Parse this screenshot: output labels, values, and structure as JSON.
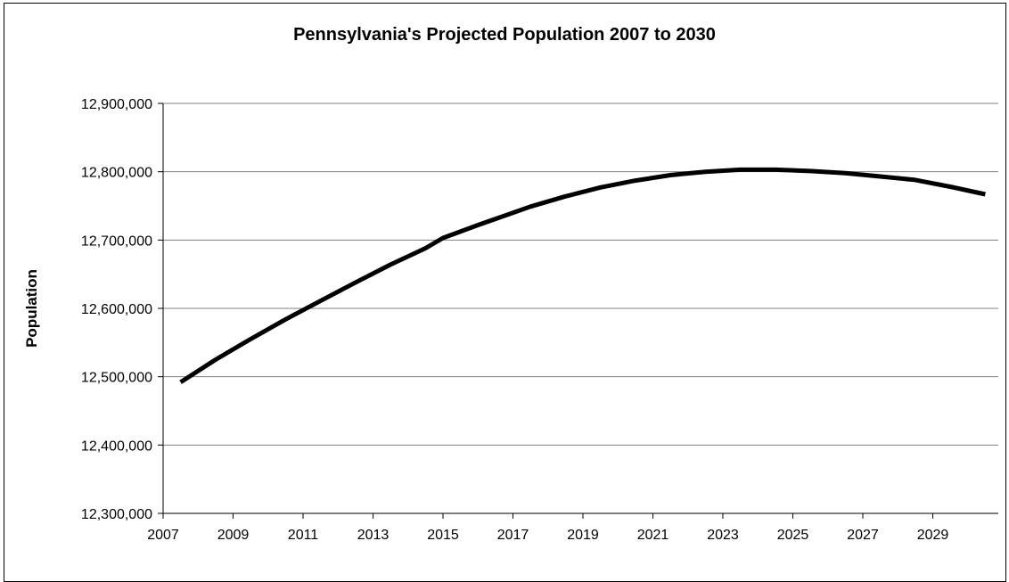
{
  "chart_data": {
    "type": "line",
    "title": "Pennsylvania's Projected Population 2007 to 2030",
    "xlabel": "",
    "ylabel": "Population",
    "x_tick_labels": [
      "2007",
      "2009",
      "2011",
      "2013",
      "2015",
      "2017",
      "2019",
      "2021",
      "2023",
      "2025",
      "2027",
      "2029"
    ],
    "y_tick_labels": [
      "12,300,000",
      "12,400,000",
      "12,500,000",
      "12,600,000",
      "12,700,000",
      "12,800,000",
      "12,900,000"
    ],
    "ylim": [
      12300000,
      12900000
    ],
    "xlim": [
      2007,
      2031
    ],
    "grid": "horizontal",
    "legend": "none",
    "line_color": "#000000",
    "series": [
      {
        "x": [
          2007.5,
          2008.5,
          2009.5,
          2010.5,
          2011.5,
          2012.5,
          2013.5,
          2014.5,
          2015,
          2016,
          2016.5,
          2017.5,
          2018.5,
          2019.5,
          2020.5,
          2021.5,
          2022.5,
          2023.5,
          2024.5,
          2025.5,
          2026.5,
          2027.5,
          2028.5,
          2029.5,
          2030.5
        ],
        "values": [
          12492000,
          12525000,
          12555000,
          12584000,
          12611000,
          12638000,
          12664000,
          12688000,
          12703000,
          12722000,
          12731000,
          12749000,
          12764000,
          12777000,
          12787000,
          12795000,
          12800000,
          12803000,
          12803000,
          12801000,
          12798000,
          12793000,
          12788000,
          12778000,
          12767000
        ]
      }
    ]
  }
}
